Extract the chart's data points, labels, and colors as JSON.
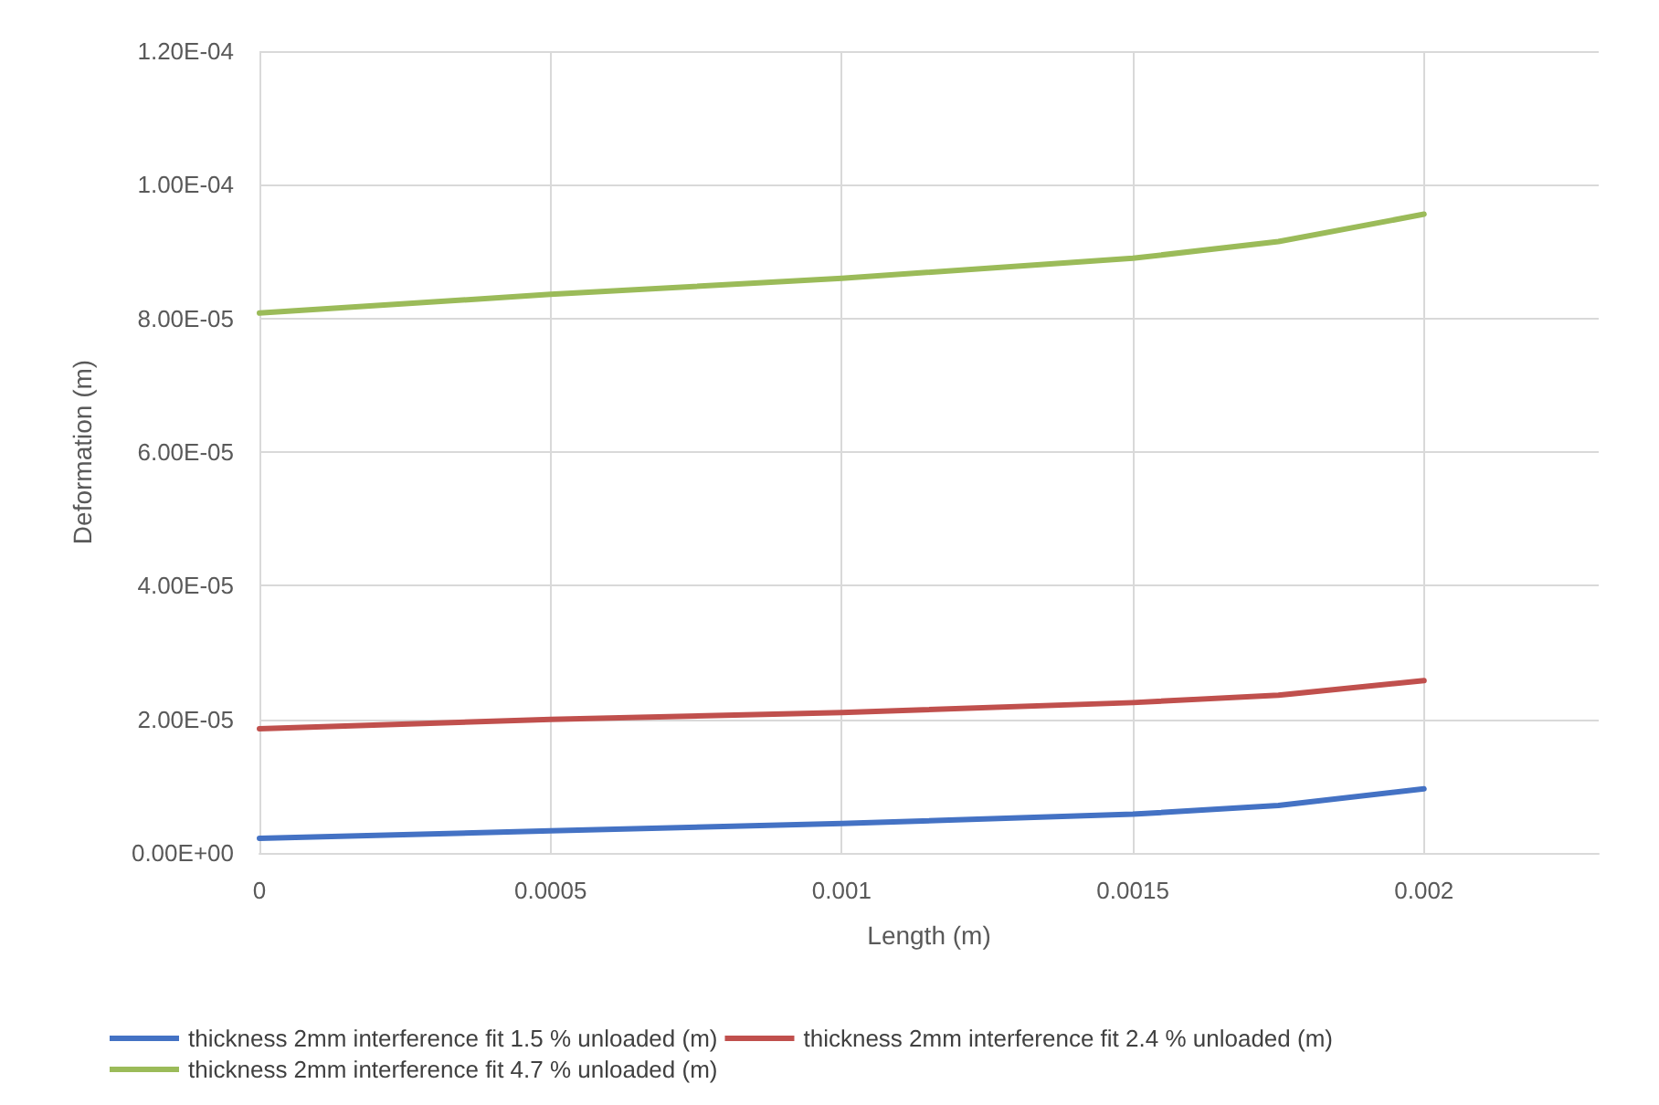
{
  "chart_data": {
    "type": "line",
    "xlabel": "Length (m)",
    "ylabel": "Deformation (m)",
    "x": [
      0,
      0.0005,
      0.001,
      0.0015,
      0.00175,
      0.002
    ],
    "series": [
      {
        "name": "thickness 2mm interference fit 1.5 % unloaded (m)",
        "color": "#4472c4",
        "values": [
          2.2e-06,
          3.3e-06,
          4.4e-06,
          5.8e-06,
          7.1e-06,
          9.6e-06
        ]
      },
      {
        "name": "thickness 2mm interference fit 2.4 % unloaded (m)",
        "color": "#c0504d",
        "values": [
          1.86e-05,
          2e-05,
          2.1e-05,
          2.25e-05,
          2.36e-05,
          2.58e-05
        ]
      },
      {
        "name": "thickness 2mm interference fit 4.7 % unloaded (m)",
        "color": "#9bbb59",
        "values": [
          8.08e-05,
          8.36e-05,
          8.6e-05,
          8.9e-05,
          9.15e-05,
          9.56e-05
        ]
      }
    ],
    "xlim": [
      0,
      0.0023
    ],
    "xticks": [
      0,
      0.0005,
      0.001,
      0.0015,
      0.002
    ],
    "ylim": [
      0,
      0.00012
    ],
    "yticks": [
      {
        "value": 0,
        "label": "0.00E+00"
      },
      {
        "value": 2e-05,
        "label": "2.00E-05"
      },
      {
        "value": 4e-05,
        "label": "4.00E-05"
      },
      {
        "value": 6e-05,
        "label": "6.00E-05"
      },
      {
        "value": 8e-05,
        "label": "8.00E-05"
      },
      {
        "value": 0.0001,
        "label": "1.00E-04"
      },
      {
        "value": 0.00012,
        "label": "1.20E-04"
      }
    ],
    "grid": true,
    "legend": "bottom",
    "marker": "none",
    "line_style": "solid"
  }
}
